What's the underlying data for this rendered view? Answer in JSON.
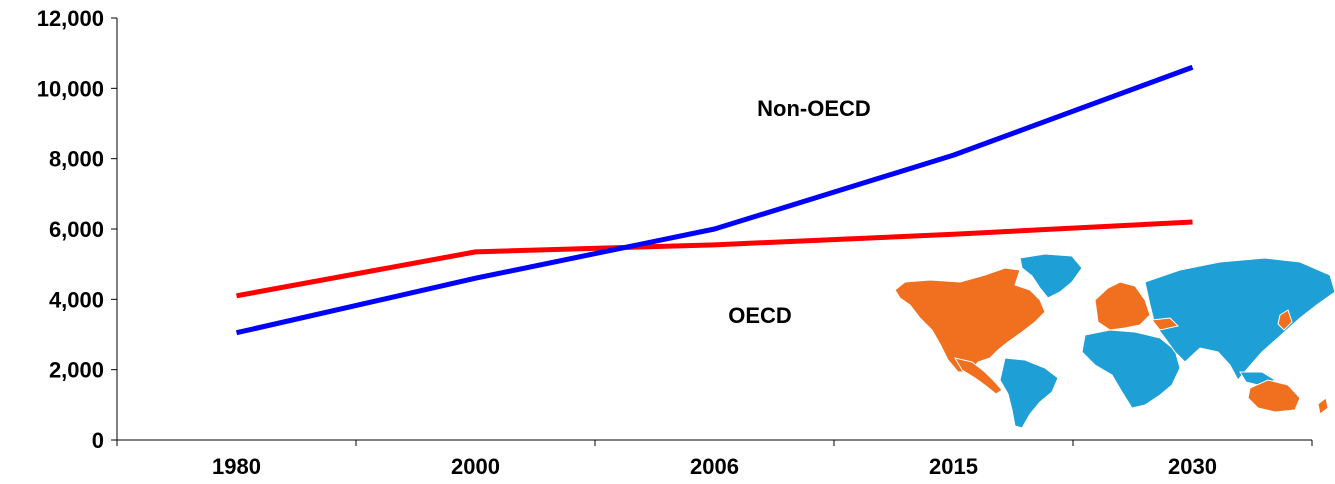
{
  "chart_data": {
    "type": "line",
    "categories": [
      "1980",
      "2000",
      "2006",
      "2015",
      "2030"
    ],
    "ylim": [
      0,
      12000
    ],
    "yticks": [
      "0",
      "2,000",
      "4,000",
      "6,000",
      "8,000",
      "10,000",
      "12,000"
    ],
    "series": [
      {
        "name": "Non-OECD",
        "color": "#0000ff",
        "values": [
          3050,
          4600,
          6000,
          8100,
          10600
        ]
      },
      {
        "name": "OECD",
        "color": "#ff0000",
        "values": [
          4100,
          5350,
          5550,
          5850,
          6200
        ]
      }
    ],
    "xlabel": "",
    "ylabel": "",
    "grid": false,
    "map_colors": {
      "oecd": "#f07020",
      "non_oecd": "#1e9fd6"
    }
  }
}
